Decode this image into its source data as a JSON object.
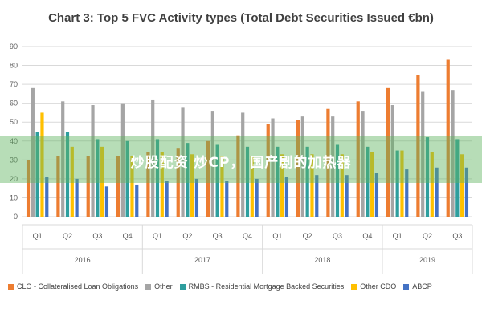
{
  "chart_data": {
    "type": "bar",
    "title": "Chart 3: Top 5 FVC Activity types (Total Debt Securities Issued €bn)",
    "ylim": [
      0,
      90
    ],
    "yticks": [
      0,
      10,
      20,
      30,
      40,
      50,
      60,
      70,
      80,
      90
    ],
    "grid": true,
    "legend_position": "bottom",
    "years": [
      {
        "label": "2016",
        "quarters": 4
      },
      {
        "label": "2017",
        "quarters": 4
      },
      {
        "label": "2018",
        "quarters": 4
      },
      {
        "label": "2019",
        "quarters": 3
      }
    ],
    "categories": [
      "Q1",
      "Q2",
      "Q3",
      "Q4",
      "Q1",
      "Q2",
      "Q3",
      "Q4",
      "Q1",
      "Q2",
      "Q3",
      "Q4",
      "Q1",
      "Q2",
      "Q3"
    ],
    "series": [
      {
        "name": "CLO - Collateralised Loan Obligations",
        "color": "#ED7D31",
        "values": [
          30,
          32,
          32,
          32,
          34,
          36,
          40,
          43,
          49,
          51,
          57,
          61,
          68,
          75,
          83
        ]
      },
      {
        "name": "Other",
        "color": "#A5A5A5",
        "values": [
          68,
          61,
          59,
          60,
          62,
          58,
          56,
          55,
          52,
          53,
          53,
          56,
          59,
          66,
          67
        ]
      },
      {
        "name": "RMBS - Residential Mortgage Backed Securities",
        "color": "#2E9E9E",
        "values": [
          45,
          45,
          41,
          40,
          41,
          39,
          38,
          37,
          37,
          37,
          38,
          37,
          35,
          42,
          41
        ]
      },
      {
        "name": "Other CDO",
        "color": "#FFC000",
        "values": [
          55,
          37,
          37,
          32,
          34,
          33,
          32,
          32,
          33,
          33,
          33,
          34,
          35,
          34,
          33
        ]
      },
      {
        "name": "ABCP",
        "color": "#4472C4",
        "values": [
          21,
          20,
          16,
          17,
          19,
          20,
          19,
          20,
          21,
          22,
          22,
          23,
          25,
          26,
          26
        ]
      }
    ]
  },
  "watermark": "炒股配资 炒CP， 国产剧的加热器"
}
